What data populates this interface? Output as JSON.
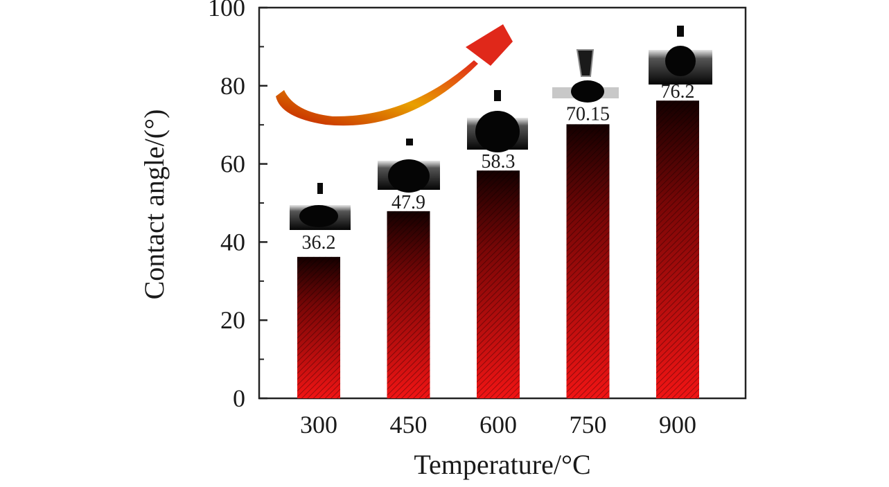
{
  "chart_data": {
    "type": "bar",
    "title": "",
    "xlabel": "Temperature/°C",
    "ylabel": "Contact angle/(°)",
    "categories": [
      "300",
      "450",
      "600",
      "750",
      "900"
    ],
    "values": [
      36.2,
      47.9,
      58.3,
      70.15,
      76.2
    ],
    "value_labels": [
      "36.2",
      "47.9",
      "58.3",
      "70.15",
      "76.2"
    ],
    "ylim": [
      0,
      100
    ],
    "yticks": [
      0,
      20,
      40,
      60,
      80,
      100
    ],
    "grid": false,
    "annotations": [
      "increasing-trend-arrow",
      "droplet-photo-insets"
    ],
    "colors": {
      "bar_top": "#1a0000",
      "bar_bottom": "#ee1111",
      "arrow_start": "#cc1100",
      "arrow_end": "#ff9a00",
      "axis": "#222222"
    }
  }
}
